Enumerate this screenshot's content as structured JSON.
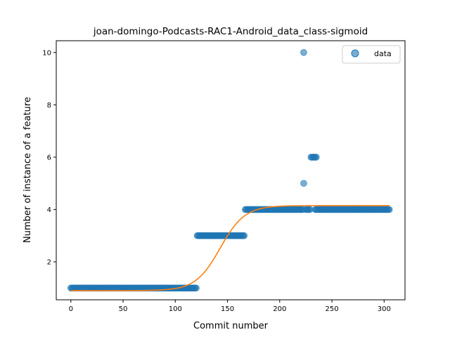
{
  "chart_data": {
    "type": "scatter",
    "title": "joan-domingo-Podcasts-RAC1-Android_data_class-sigmoid",
    "xlabel": "Commit number",
    "ylabel": "Number of instance of a feature",
    "xlim": [
      -14,
      320
    ],
    "ylim": [
      0.55,
      10.45
    ],
    "xticks": [
      0,
      50,
      100,
      150,
      200,
      250,
      300
    ],
    "yticks": [
      2,
      4,
      6,
      8,
      10
    ],
    "legend": {
      "placement": "top-right",
      "entries": [
        "data"
      ]
    },
    "colors": {
      "data": "#1f77b4",
      "fit": "#ff7f0e"
    },
    "series": [
      {
        "name": "data",
        "segments": [
          {
            "x_start": 0,
            "x_end": 120,
            "y": 1
          },
          {
            "x_start": 121,
            "x_end": 166,
            "y": 3
          },
          {
            "x_start": 167,
            "x_end": 222,
            "y": 4
          },
          {
            "x_start": 225,
            "x_end": 229,
            "y": 4
          },
          {
            "x_start": 234,
            "x_end": 305,
            "y": 4
          },
          {
            "x_start": 230,
            "x_end": 235,
            "y": 6
          }
        ],
        "points": [
          {
            "x": 223,
            "y": 10
          },
          {
            "x": 223,
            "y": 5
          }
        ]
      },
      {
        "name": "",
        "type": "line",
        "sigmoid": {
          "lower": 0.9,
          "upper": 4.15,
          "midpoint": 143,
          "steepness": 0.085
        },
        "x_range": [
          0,
          305
        ]
      }
    ]
  }
}
